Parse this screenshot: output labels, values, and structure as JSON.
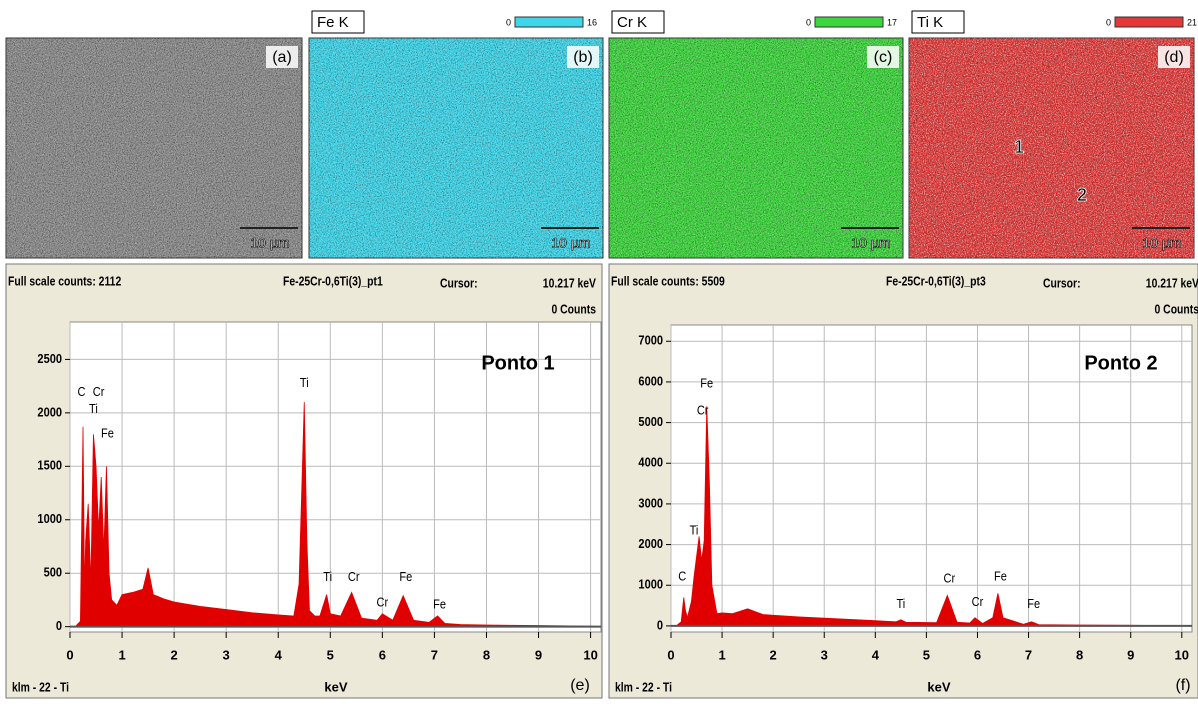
{
  "panels": [
    {
      "label": "(a)",
      "scale_bar": "10 µm",
      "color": "#8c8c8c"
    },
    {
      "element": "Fe K",
      "scale_min": 0,
      "scale_max": 16,
      "color": "#3fd6ea",
      "label": "(b)",
      "scale_bar": "10 µm"
    },
    {
      "element": "Cr K",
      "scale_min": 0,
      "scale_max": 17,
      "color": "#3ed63e",
      "label": "(c)",
      "scale_bar": "10 µm"
    },
    {
      "element": "Ti K",
      "scale_min": 0,
      "scale_max": 21,
      "color": "#e23a3a",
      "label": "(d)",
      "scale_bar": "10 µm",
      "markers": [
        "1",
        "2"
      ]
    }
  ],
  "chart_data": [
    {
      "type": "area",
      "title": "Ponto 1",
      "full_scale": "Full scale counts: 2112",
      "sample": "Fe-25Cr-0,6Ti(3)_pt1",
      "cursor_label": "Cursor:",
      "cursor_value": "10.217 keV",
      "counts": "0 Counts",
      "x_label": "keV",
      "footer": "klm - 22 - Ti",
      "panel_label": "(e)",
      "color": "#e00000",
      "grid": true,
      "x": [
        0,
        0.1,
        0.2,
        0.25,
        0.28,
        0.3,
        0.35,
        0.4,
        0.45,
        0.5,
        0.55,
        0.6,
        0.65,
        0.7,
        0.75,
        0.8,
        0.9,
        1.0,
        1.2,
        1.4,
        1.5,
        1.6,
        1.8,
        2,
        2.5,
        3,
        3.5,
        4,
        4.3,
        4.4,
        4.5,
        4.55,
        4.6,
        4.7,
        4.8,
        4.93,
        5.0,
        5.2,
        5.41,
        5.6,
        5.9,
        6.0,
        6.2,
        6.4,
        6.6,
        6.9,
        7.06,
        7.2,
        7.5,
        8,
        9,
        10,
        10.2
      ],
      "values": [
        0,
        0,
        50,
        1870,
        300,
        800,
        1150,
        400,
        1800,
        1500,
        900,
        1400,
        700,
        1500,
        500,
        250,
        200,
        300,
        320,
        350,
        550,
        300,
        260,
        230,
        190,
        160,
        130,
        110,
        100,
        400,
        2100,
        800,
        150,
        100,
        100,
        300,
        120,
        100,
        320,
        80,
        60,
        120,
        60,
        290,
        60,
        40,
        100,
        30,
        20,
        15,
        10,
        5,
        0
      ],
      "xlim": [
        0,
        10.2
      ],
      "ylim": [
        -50,
        2850
      ],
      "xticks": [
        0,
        1,
        2,
        3,
        4,
        5,
        6,
        7,
        8,
        9,
        10
      ],
      "yticks": [
        0,
        500,
        1000,
        1500,
        2000,
        2500
      ],
      "annotations": [
        {
          "text": "C",
          "x": 0.22,
          "y": 2190
        },
        {
          "text": "Cr",
          "x": 0.55,
          "y": 2190
        },
        {
          "text": "Ti",
          "x": 0.45,
          "y": 2030
        },
        {
          "text": "Fe",
          "x": 0.72,
          "y": 1800
        },
        {
          "text": "Ti",
          "x": 4.5,
          "y": 2275
        },
        {
          "text": "Ti",
          "x": 4.95,
          "y": 460
        },
        {
          "text": "Cr",
          "x": 5.45,
          "y": 460
        },
        {
          "text": "Cr",
          "x": 6.0,
          "y": 220
        },
        {
          "text": "Fe",
          "x": 6.45,
          "y": 460
        },
        {
          "text": "Fe",
          "x": 7.1,
          "y": 200
        }
      ]
    },
    {
      "type": "area",
      "title": "Ponto 2",
      "full_scale": "Full scale counts: 5509",
      "sample": "Fe-25Cr-0,6Ti(3)_pt3",
      "cursor_label": "Cursor:",
      "cursor_value": "10.217 keV",
      "counts": "0 Counts",
      "x_label": "keV",
      "footer": "klm - 22 - Ti",
      "panel_label": "(f)",
      "color": "#e00000",
      "grid": true,
      "x": [
        0,
        0.1,
        0.2,
        0.25,
        0.28,
        0.32,
        0.4,
        0.45,
        0.5,
        0.55,
        0.6,
        0.65,
        0.7,
        0.75,
        0.8,
        0.9,
        1.0,
        1.2,
        1.5,
        1.8,
        2,
        2.5,
        3,
        3.5,
        4,
        4.4,
        4.5,
        4.6,
        5.2,
        5.41,
        5.6,
        5.85,
        5.95,
        6.1,
        6.3,
        6.4,
        6.5,
        6.9,
        7.06,
        7.2,
        8,
        9,
        10,
        10.2
      ],
      "values": [
        0,
        0,
        100,
        700,
        400,
        200,
        600,
        1200,
        1700,
        2200,
        1600,
        2100,
        5400,
        3600,
        1000,
        300,
        320,
        300,
        420,
        280,
        260,
        220,
        190,
        160,
        130,
        100,
        150,
        90,
        80,
        750,
        90,
        70,
        200,
        60,
        200,
        800,
        200,
        40,
        100,
        30,
        20,
        15,
        10,
        0
      ],
      "xlim": [
        0,
        10.2
      ],
      "ylim": [
        -150,
        7400
      ],
      "xticks": [
        0,
        1,
        2,
        3,
        4,
        5,
        6,
        7,
        8,
        9,
        10
      ],
      "yticks": [
        0,
        1000,
        2000,
        3000,
        4000,
        5000,
        6000,
        7000
      ],
      "annotations": [
        {
          "text": "Fe",
          "x": 0.7,
          "y": 5950
        },
        {
          "text": "Cr",
          "x": 0.62,
          "y": 5280
        },
        {
          "text": "Ti",
          "x": 0.45,
          "y": 2330
        },
        {
          "text": "C",
          "x": 0.22,
          "y": 1200
        },
        {
          "text": "Ti",
          "x": 4.5,
          "y": 520
        },
        {
          "text": "Cr",
          "x": 5.45,
          "y": 1150
        },
        {
          "text": "Cr",
          "x": 6.0,
          "y": 570
        },
        {
          "text": "Fe",
          "x": 6.45,
          "y": 1200
        },
        {
          "text": "Fe",
          "x": 7.1,
          "y": 520
        }
      ]
    }
  ]
}
